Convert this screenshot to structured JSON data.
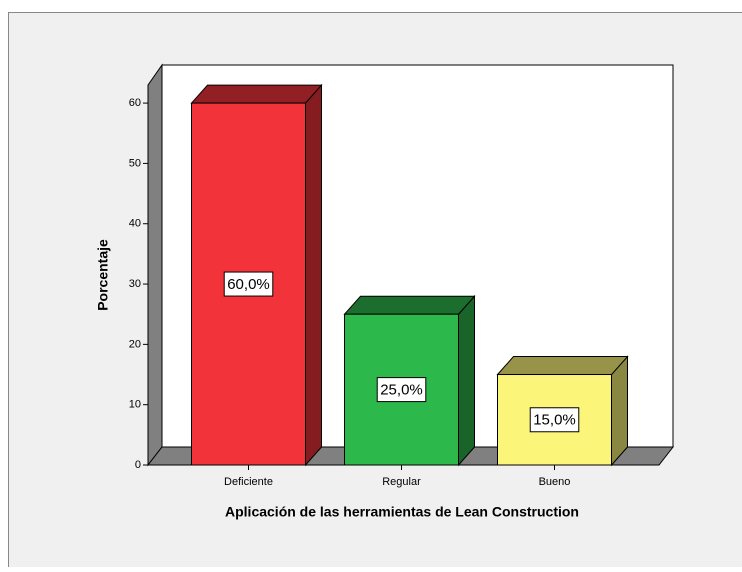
{
  "chart_data": {
    "type": "bar3d",
    "xlabel": "Aplicación de las herramientas de Lean Construction",
    "ylabel": "Porcentaje",
    "categories": [
      "Deficiente",
      "Regular",
      "Bueno"
    ],
    "values": [
      60,
      25,
      15
    ],
    "value_labels": [
      "60,0%",
      "25,0%",
      "15,0%"
    ],
    "colors": [
      "#f2343a",
      "#2db84b",
      "#fbf679"
    ],
    "ylim": [
      0,
      63
    ],
    "yticks": [
      0,
      10,
      20,
      30,
      40,
      50,
      60
    ]
  }
}
